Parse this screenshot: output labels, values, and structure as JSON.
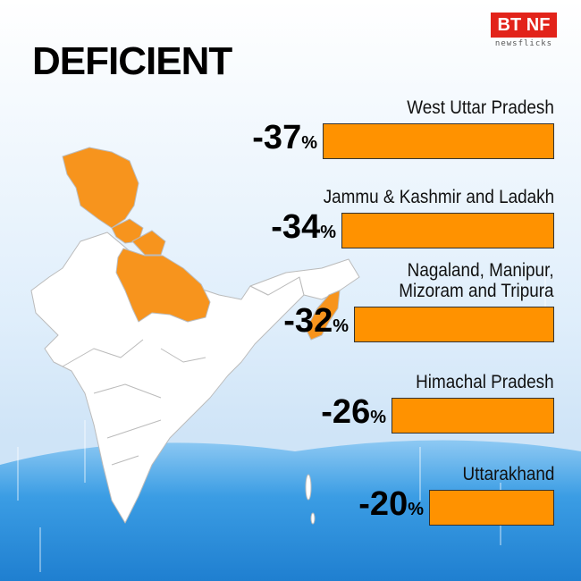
{
  "brand": {
    "name": "BT NF",
    "sub": "newsflicks",
    "color": "#e2231a"
  },
  "title": "DEFICIENT",
  "chart_data": {
    "type": "bar",
    "orientation": "horizontal",
    "categories": [
      "West Uttar Pradesh",
      "Jammu & Kashmir and Ladakh",
      "Nagaland, Manipur, Mizoram and Tripura",
      "Himachal Pradesh",
      "Uttarakhand"
    ],
    "category_lines": [
      [
        "West Uttar Pradesh"
      ],
      [
        "Jammu & Kashmir and Ladakh"
      ],
      [
        "Nagaland, Manipur,",
        "Mizoram and Tripura"
      ],
      [
        "Himachal Pradesh"
      ],
      [
        "Uttarakhand"
      ]
    ],
    "values": [
      -37,
      -34,
      -32,
      -26,
      -20
    ],
    "value_labels": [
      "-37",
      "-34",
      "-32",
      "-26",
      "-20"
    ],
    "unit": "%",
    "bar_color": "#ff9200",
    "map_highlight_color": "#f7941d"
  }
}
